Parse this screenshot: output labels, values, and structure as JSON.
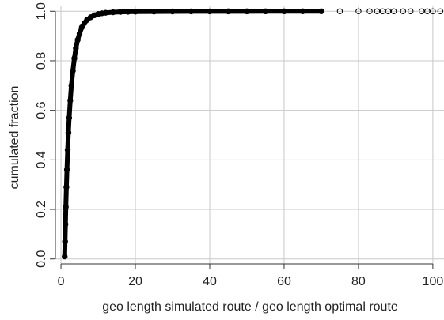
{
  "chart_data": {
    "type": "scatter",
    "title": "",
    "xlabel": "geo length simulated route /  geo length optimal route",
    "ylabel": "cumulated fraction",
    "xlim": [
      -1.5,
      103
    ],
    "ylim": [
      -0.02,
      1.02
    ],
    "xticks": [
      0,
      20,
      40,
      60,
      80,
      100
    ],
    "xtick_labels": [
      "0",
      "20",
      "40",
      "60",
      "80",
      "100"
    ],
    "yticks": [
      0.0,
      0.2,
      0.4,
      0.6,
      0.8,
      1.0
    ],
    "ytick_labels": [
      "0.0",
      "0.2",
      "0.4",
      "0.6",
      "0.8",
      "1.0"
    ],
    "grid": true,
    "legend": "none",
    "colors": {
      "points": "#000000",
      "grid": "#c8c8c8",
      "axis": "#333333"
    },
    "series": [
      {
        "x": [
          1.0,
          1.1,
          1.2,
          1.3,
          1.45,
          1.6,
          1.8,
          2.0,
          2.2,
          2.5,
          2.8,
          3.2,
          3.6,
          4.0,
          4.5,
          5.0,
          5.6,
          6.3,
          7.0,
          8.0,
          9.0,
          10.0,
          11.0,
          12.0,
          14.0,
          16.0,
          18.0,
          20.0,
          25.0,
          30.0,
          35.0,
          40.0,
          45.0,
          50.0,
          55.0,
          60.0,
          65.0,
          70.0,
          75.0,
          80.0,
          83.0,
          85.0,
          86.5,
          88.0,
          89.5,
          92.0,
          94.0,
          97.0,
          98.5,
          100.0,
          102.0
        ],
        "y": [
          0.01,
          0.07,
          0.14,
          0.21,
          0.29,
          0.36,
          0.44,
          0.51,
          0.57,
          0.64,
          0.7,
          0.76,
          0.81,
          0.85,
          0.885,
          0.91,
          0.935,
          0.952,
          0.965,
          0.976,
          0.984,
          0.989,
          0.992,
          0.994,
          0.996,
          0.9975,
          0.998,
          0.9985,
          0.999,
          0.9993,
          0.9995,
          0.9996,
          0.9997,
          0.9997,
          0.9998,
          0.9998,
          0.9999,
          0.9999,
          0.9999,
          0.9999,
          0.9999,
          1.0,
          1.0,
          1.0,
          1.0,
          1.0,
          1.0,
          1.0,
          1.0,
          1.0,
          1.0
        ]
      }
    ]
  }
}
